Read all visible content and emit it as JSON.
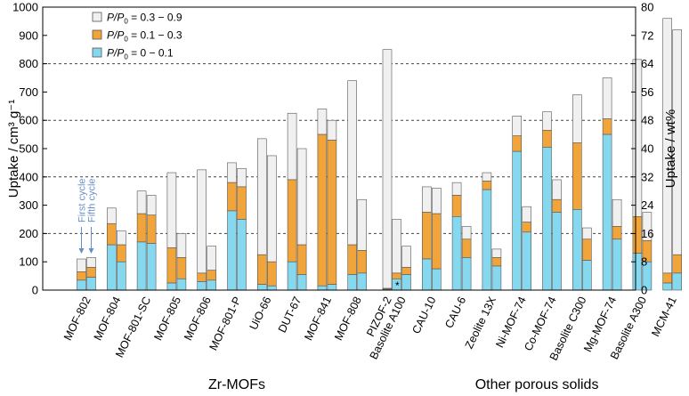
{
  "chart_data": {
    "type": "stacked-bar",
    "ylabel": "Uptake / cm³ g⁻¹",
    "ylabel_right": "Uptake / wt%",
    "ylim": [
      0,
      1000
    ],
    "yticks": [
      0,
      100,
      200,
      300,
      400,
      500,
      600,
      700,
      800,
      900,
      1000
    ],
    "ylim_right": [
      0,
      80
    ],
    "yticks_right": [
      0,
      8,
      16,
      24,
      32,
      40,
      48,
      56,
      64,
      72,
      80
    ],
    "grid_dashed_at": [
      200,
      400,
      600,
      800
    ],
    "legend": {
      "placement": "top-left",
      "entries": [
        {
          "pre": "P/P",
          "sub": "0",
          "post": " = 0.3 − 0.9",
          "color": "#f0f0f0"
        },
        {
          "pre": "P/P",
          "sub": "0",
          "post": " = 0.1 − 0.3",
          "color": "#f0a43a"
        },
        {
          "pre": "P/P",
          "sub": "0",
          "post": " = 0 − 0.1",
          "color": "#86d8ee"
        }
      ]
    },
    "series_names": [
      "P/P0 = 0 − 0.1",
      "P/P0 = 0.1 − 0.3",
      "P/P0 = 0.3 − 0.9"
    ],
    "annotations": {
      "first": "First cycle",
      "fifth": "Fifth cycle",
      "star": "*"
    },
    "groups": [
      {
        "label": "Zr-MOFs",
        "categories": [
          {
            "name": "MOF-802",
            "bars": [
              [
                35,
                65,
                110
              ],
              [
                45,
                80,
                115
              ]
            ]
          },
          {
            "name": "MOF-804",
            "bars": [
              [
                160,
                235,
                290
              ],
              [
                100,
                160,
                210
              ]
            ]
          },
          {
            "name": "MOF-801-SC",
            "bars": [
              [
                170,
                270,
                350
              ],
              [
                165,
                265,
                335
              ]
            ]
          },
          {
            "name": "MOF-805",
            "bars": [
              [
                25,
                150,
                415
              ],
              [
                40,
                115,
                200
              ]
            ]
          },
          {
            "name": "MOF-806",
            "bars": [
              [
                30,
                60,
                425
              ],
              [
                35,
                70,
                155
              ]
            ]
          },
          {
            "name": "MOF-801-P",
            "bars": [
              [
                280,
                380,
                450
              ],
              [
                250,
                365,
                430
              ]
            ]
          },
          {
            "name": "UiO-66",
            "bars": [
              [
                20,
                125,
                535
              ],
              [
                15,
                100,
                475
              ]
            ]
          },
          {
            "name": "DUT-67",
            "bars": [
              [
                100,
                390,
                625
              ],
              [
                55,
                160,
                500
              ]
            ]
          },
          {
            "name": "MOF-841",
            "bars": [
              [
                15,
                550,
                640
              ],
              [
                20,
                530,
                600
              ]
            ]
          },
          {
            "name": "MOF-808",
            "bars": [
              [
                55,
                160,
                740
              ],
              [
                60,
                140,
                320
              ]
            ]
          },
          {
            "name": "PIZOF-2",
            "bars": [
              [
                3,
                6,
                850
              ]
            ],
            "note": "*"
          }
        ]
      },
      {
        "label": "Other porous solids",
        "categories": [
          {
            "name": "Basolite A100",
            "bars": [
              [
                40,
                60,
                250
              ],
              [
                55,
                80,
                155
              ]
            ]
          },
          {
            "name": "CAU-10",
            "bars": [
              [
                110,
                275,
                365
              ],
              [
                75,
                270,
                360
              ]
            ]
          },
          {
            "name": "CAU-6",
            "bars": [
              [
                260,
                335,
                380
              ],
              [
                115,
                180,
                225
              ]
            ]
          },
          {
            "name": "Zeolite 13X",
            "bars": [
              [
                355,
                385,
                415
              ],
              [
                85,
                115,
                145
              ]
            ]
          },
          {
            "name": "Ni-MOF-74",
            "bars": [
              [
                490,
                545,
                615
              ],
              [
                205,
                240,
                295
              ]
            ]
          },
          {
            "name": "Co-MOF-74",
            "bars": [
              [
                505,
                565,
                630
              ],
              [
                275,
                320,
                390
              ]
            ]
          },
          {
            "name": "Basolite C300",
            "bars": [
              [
                285,
                520,
                690
              ],
              [
                105,
                180,
                220
              ]
            ]
          },
          {
            "name": "Mg-MOF-74",
            "bars": [
              [
                550,
                605,
                750
              ],
              [
                180,
                225,
                320
              ]
            ]
          },
          {
            "name": "Basolite A300",
            "bars": [
              [
                130,
                260,
                815
              ],
              [
                100,
                175,
                275
              ]
            ]
          },
          {
            "name": "MCM-41",
            "bars": [
              [
                25,
                60,
                960
              ],
              [
                60,
                125,
                920
              ]
            ]
          }
        ]
      }
    ],
    "colors": {
      "low": "#86d8ee",
      "mid": "#f0a43a",
      "high": "#f0f0f0",
      "stroke": "#555555",
      "grid": "#444444"
    }
  }
}
